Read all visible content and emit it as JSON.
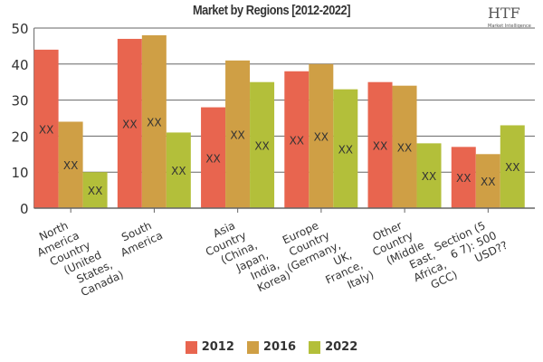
{
  "chart_data": {
    "type": "bar",
    "title": "Market by Regions [2012-2022]",
    "categories": [
      [
        "North",
        "America",
        "Country",
        "(United",
        "States,",
        "Canada)"
      ],
      [
        "South",
        "America"
      ],
      [
        "Asia",
        "Country",
        "(China,",
        "Japan,",
        "India,",
        "Korea)"
      ],
      [
        "Europe",
        "Country",
        "(Germany,",
        "UK,",
        "France,",
        "Italy)"
      ],
      [
        "Other",
        "Country",
        "(Middle",
        "East,",
        "Africa,",
        "GCC)"
      ],
      [
        "Section (5",
        "6 7): 500",
        "USD??"
      ]
    ],
    "series": [
      {
        "name": "2012",
        "color": "#e8654f",
        "values": [
          44,
          47,
          28,
          38,
          35,
          17
        ]
      },
      {
        "name": "2016",
        "color": "#cf9f45",
        "values": [
          24,
          48,
          41,
          40,
          34,
          15
        ]
      },
      {
        "name": "2022",
        "color": "#b3bf3a",
        "values": [
          10,
          21,
          35,
          33,
          18,
          23
        ]
      }
    ],
    "data_label": "XX",
    "ylim": [
      0,
      50
    ],
    "yticks": [
      0,
      10,
      20,
      30,
      40,
      50
    ],
    "grid": true,
    "legend": "bottom"
  },
  "logo": {
    "text": "HTF",
    "sub": "Market Intelligence"
  }
}
